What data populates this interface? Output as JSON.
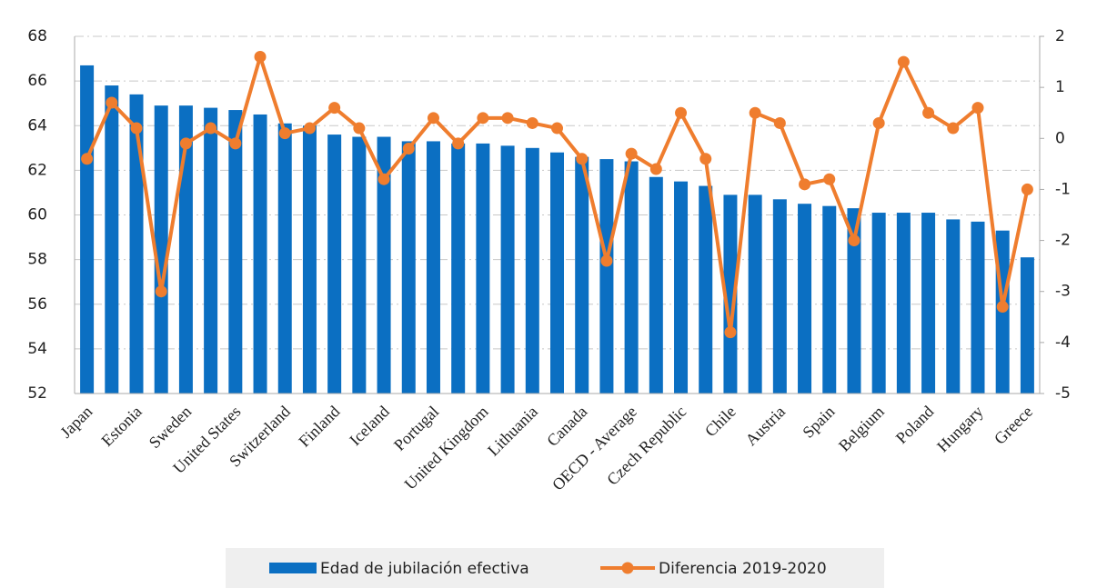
{
  "chart_data": {
    "type": "bar_line",
    "categories": [
      "Japan",
      null,
      "Estonia",
      null,
      "Sweden",
      null,
      "United States",
      null,
      "Switzerland",
      null,
      "Finland",
      null,
      "Iceland",
      null,
      "Portugal",
      null,
      "United Kingdom",
      null,
      "Lithuania",
      null,
      "Canada",
      null,
      "OECD - Average",
      null,
      "Czech Republic",
      null,
      "Chile",
      null,
      "Austria",
      null,
      "Spain",
      null,
      "Belgium",
      null,
      "Poland",
      null,
      "Hungary",
      null,
      "Greece"
    ],
    "series": [
      {
        "name": "Edad de jubilación efectiva",
        "type": "bar",
        "color": "#0b6fc2",
        "values": [
          66.7,
          65.8,
          65.4,
          64.9,
          64.9,
          64.8,
          64.7,
          64.5,
          64.1,
          64.0,
          63.6,
          63.5,
          63.5,
          63.3,
          63.3,
          63.2,
          63.2,
          63.1,
          63.0,
          62.8,
          62.6,
          62.5,
          62.4,
          61.7,
          61.5,
          61.3,
          60.9,
          60.9,
          60.7,
          60.5,
          60.4,
          60.3,
          60.1,
          60.1,
          60.1,
          59.8,
          59.7,
          59.3,
          58.1
        ]
      },
      {
        "name": "Diferencia 2019-2020",
        "type": "line",
        "axis": "y2",
        "color": "#ef7d2e",
        "values": [
          -0.4,
          0.7,
          0.2,
          -3.0,
          -0.1,
          0.2,
          -0.1,
          1.6,
          0.1,
          0.2,
          0.6,
          0.2,
          -0.8,
          -0.2,
          0.4,
          -0.1,
          0.4,
          0.4,
          0.3,
          0.2,
          -0.4,
          -2.4,
          -0.3,
          -0.6,
          0.5,
          -0.4,
          -3.8,
          0.5,
          0.3,
          -0.9,
          -0.8,
          -2.0,
          0.3,
          1.5,
          0.5,
          0.2,
          0.6,
          -3.3,
          -1.0
        ]
      }
    ],
    "ylim": [
      52,
      68
    ],
    "yticks": [
      52,
      54,
      56,
      58,
      60,
      62,
      64,
      66,
      68
    ],
    "y2lim": [
      -5,
      2
    ],
    "y2ticks": [
      -5,
      -4,
      -3,
      -2,
      -1,
      0,
      1,
      2
    ],
    "grid": true,
    "legend": "bottom"
  }
}
